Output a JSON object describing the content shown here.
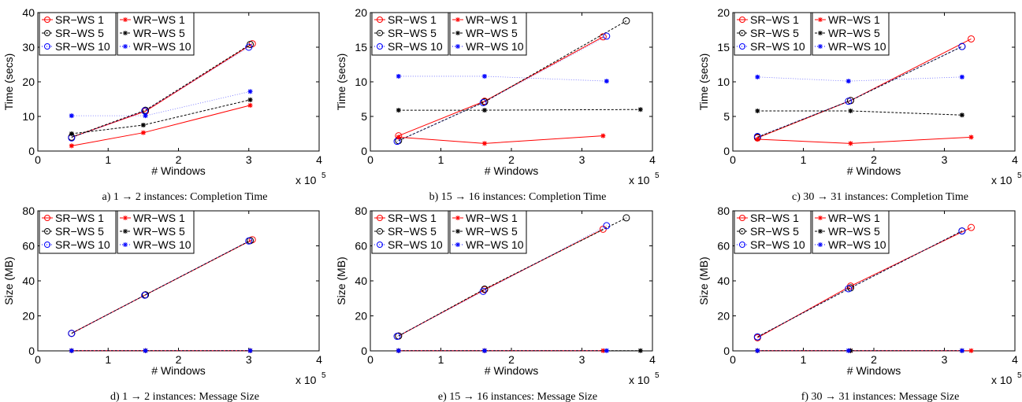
{
  "chart_data": [
    {
      "type": "line",
      "caption": "a) 1 → 2 instances: Completion Time",
      "xlabel": "# Windows",
      "ylabel": "Time (secs)",
      "xlim": [
        0,
        4
      ],
      "ylim": [
        0,
        40
      ],
      "xticks": [
        "0",
        "1",
        "2",
        "3",
        "4"
      ],
      "yticks": [
        "0",
        "10",
        "20",
        "30",
        "40"
      ],
      "x_multiplier": "x 10",
      "x_multiplier_exp": "5",
      "legend_sr": [
        "SR−WS 1",
        "SR−WS 5",
        "SR−WS 10"
      ],
      "legend_wr": [
        "WR−WS 1",
        "WR−WS 5",
        "WR−WS 10"
      ],
      "series": [
        {
          "name": "SR−WS 1",
          "x": [
            0.48,
            1.53,
            3.05
          ],
          "y": [
            4.0,
            11.5,
            31.0
          ]
        },
        {
          "name": "SR−WS 5",
          "x": [
            0.48,
            1.53,
            3.02
          ],
          "y": [
            4.0,
            11.8,
            30.8
          ]
        },
        {
          "name": "SR−WS 10",
          "x": [
            0.48,
            1.52,
            3.0
          ],
          "y": [
            3.8,
            11.6,
            30.0
          ]
        },
        {
          "name": "WR−WS 1",
          "x": [
            0.48,
            1.5,
            3.02
          ],
          "y": [
            1.5,
            5.3,
            13.2
          ]
        },
        {
          "name": "WR−WS 5",
          "x": [
            0.48,
            1.5,
            3.02
          ],
          "y": [
            5.0,
            7.5,
            14.8
          ]
        },
        {
          "name": "WR−WS 10",
          "x": [
            0.48,
            1.53,
            3.02
          ],
          "y": [
            10.2,
            10.2,
            17.2
          ]
        }
      ]
    },
    {
      "type": "line",
      "caption": "b) 15 → 16 instances: Completion Time",
      "xlabel": "# Windows",
      "ylabel": "Time (secs)",
      "xlim": [
        0,
        4
      ],
      "ylim": [
        0,
        20
      ],
      "xticks": [
        "0",
        "1",
        "2",
        "3",
        "4"
      ],
      "yticks": [
        "0",
        "5",
        "10",
        "15",
        "20"
      ],
      "x_multiplier": "x 10",
      "x_multiplier_exp": "5",
      "legend_sr": [
        "SR−WS 1",
        "SR−WS 5",
        "SR−WS 10"
      ],
      "legend_wr": [
        "WR−WS 1",
        "WR−WS 5",
        "WR−WS 10"
      ],
      "series": [
        {
          "name": "SR−WS 1",
          "x": [
            0.4,
            1.62,
            3.3
          ],
          "y": [
            2.2,
            7.2,
            16.5
          ]
        },
        {
          "name": "SR−WS 5",
          "x": [
            0.4,
            1.62,
            3.63
          ],
          "y": [
            1.5,
            7.1,
            18.8
          ]
        },
        {
          "name": "SR−WS 10",
          "x": [
            0.38,
            1.6,
            3.35
          ],
          "y": [
            1.4,
            7.0,
            16.6
          ]
        },
        {
          "name": "WR−WS 1",
          "x": [
            0.4,
            1.62,
            3.3
          ],
          "y": [
            2.0,
            1.1,
            2.2
          ]
        },
        {
          "name": "WR−WS 5",
          "x": [
            0.4,
            1.62,
            3.83
          ],
          "y": [
            5.9,
            5.9,
            6.0
          ]
        },
        {
          "name": "WR−WS 10",
          "x": [
            0.4,
            1.62,
            3.35
          ],
          "y": [
            10.8,
            10.8,
            10.1
          ]
        }
      ]
    },
    {
      "type": "line",
      "caption": "c) 30 → 31 instances: Completion Time",
      "xlabel": "# Windows",
      "ylabel": "Time (secs)",
      "xlim": [
        0,
        4
      ],
      "ylim": [
        0,
        20
      ],
      "xticks": [
        "0",
        "1",
        "2",
        "3",
        "4"
      ],
      "yticks": [
        "0",
        "5",
        "10",
        "15",
        "20"
      ],
      "x_multiplier": "x 10",
      "x_multiplier_exp": "5",
      "legend_sr": [
        "SR−WS 1",
        "SR−WS 5",
        "SR−WS 10"
      ],
      "legend_wr": [
        "WR−WS 1",
        "WR−WS 5",
        "WR−WS 10"
      ],
      "series": [
        {
          "name": "SR−WS 1",
          "x": [
            0.35,
            1.67,
            3.38
          ],
          "y": [
            1.9,
            7.3,
            16.2
          ]
        },
        {
          "name": "SR−WS 5",
          "x": [
            0.35,
            1.67,
            3.25
          ],
          "y": [
            2.0,
            7.3,
            15.1
          ]
        },
        {
          "name": "SR−WS 10",
          "x": [
            0.35,
            1.64,
            3.25
          ],
          "y": [
            2.1,
            7.2,
            15.1
          ]
        },
        {
          "name": "WR−WS 1",
          "x": [
            0.35,
            1.67,
            3.38
          ],
          "y": [
            1.7,
            1.1,
            2.0
          ]
        },
        {
          "name": "WR−WS 5",
          "x": [
            0.35,
            1.67,
            3.25
          ],
          "y": [
            5.8,
            5.8,
            5.2
          ]
        },
        {
          "name": "WR−WS 10",
          "x": [
            0.35,
            1.64,
            3.25
          ],
          "y": [
            10.7,
            10.1,
            10.7
          ]
        }
      ]
    },
    {
      "type": "line",
      "caption": "d) 1 → 2 instances: Message Size",
      "xlabel": "# Windows",
      "ylabel": "Size (MB)",
      "xlim": [
        0,
        4
      ],
      "ylim": [
        0,
        80
      ],
      "xticks": [
        "0",
        "1",
        "2",
        "3",
        "4"
      ],
      "yticks": [
        "0",
        "20",
        "40",
        "60",
        "80"
      ],
      "x_multiplier": "x 10",
      "x_multiplier_exp": "5",
      "legend_sr": [
        "SR−WS 1",
        "SR−WS 5",
        "SR−WS 10"
      ],
      "legend_wr": [
        "WR−WS 1",
        "WR−WS 5",
        "WR−WS 10"
      ],
      "series": [
        {
          "name": "SR−WS 1",
          "x": [
            0.48,
            1.53,
            3.05
          ],
          "y": [
            10.0,
            32.0,
            63.5
          ]
        },
        {
          "name": "SR−WS 5",
          "x": [
            0.48,
            1.53,
            3.02
          ],
          "y": [
            10.0,
            32.0,
            63.0
          ]
        },
        {
          "name": "SR−WS 10",
          "x": [
            0.48,
            1.52,
            3.0
          ],
          "y": [
            10.0,
            31.8,
            62.8
          ]
        },
        {
          "name": "WR−WS 1",
          "x": [
            0.48,
            1.53,
            3.02
          ],
          "y": [
            0.1,
            0.1,
            0.1
          ]
        },
        {
          "name": "WR−WS 5",
          "x": [
            0.48,
            1.53,
            3.02
          ],
          "y": [
            0.1,
            0.1,
            0.1
          ]
        },
        {
          "name": "WR−WS 10",
          "x": [
            0.48,
            1.53,
            3.02
          ],
          "y": [
            0.1,
            0.1,
            0.1
          ]
        }
      ]
    },
    {
      "type": "line",
      "caption": "e) 15 → 16 instances: Message Size",
      "xlabel": "# Windows",
      "ylabel": "Size (MB)",
      "xlim": [
        0,
        4
      ],
      "ylim": [
        0,
        80
      ],
      "xticks": [
        "0",
        "1",
        "2",
        "3",
        "4"
      ],
      "yticks": [
        "0",
        "20",
        "40",
        "60",
        "80"
      ],
      "x_multiplier": "x 10",
      "x_multiplier_exp": "5",
      "legend_sr": [
        "SR−WS 1",
        "SR−WS 5",
        "SR−WS 10"
      ],
      "legend_wr": [
        "WR−WS 1",
        "WR−WS 5",
        "WR−WS 10"
      ],
      "series": [
        {
          "name": "SR−WS 1",
          "x": [
            0.4,
            1.62,
            3.3
          ],
          "y": [
            8.5,
            35.0,
            69.5
          ]
        },
        {
          "name": "SR−WS 5",
          "x": [
            0.4,
            1.62,
            3.63
          ],
          "y": [
            8.5,
            35.3,
            76.0
          ]
        },
        {
          "name": "SR−WS 10",
          "x": [
            0.38,
            1.6,
            3.35
          ],
          "y": [
            8.3,
            34.0,
            71.5
          ]
        },
        {
          "name": "WR−WS 1",
          "x": [
            0.4,
            1.62,
            3.3
          ],
          "y": [
            0.1,
            0.1,
            0.1
          ]
        },
        {
          "name": "WR−WS 5",
          "x": [
            0.4,
            1.62,
            3.83
          ],
          "y": [
            0.1,
            0.1,
            0.1
          ]
        },
        {
          "name": "WR−WS 10",
          "x": [
            0.4,
            1.62,
            3.35
          ],
          "y": [
            0.1,
            0.1,
            0.1
          ]
        }
      ]
    },
    {
      "type": "line",
      "caption": "f) 30 → 31 instances: Message Size",
      "xlabel": "# Windows",
      "ylabel": "Size (MB)",
      "xlim": [
        0,
        4
      ],
      "ylim": [
        0,
        80
      ],
      "xticks": [
        "0",
        "1",
        "2",
        "3",
        "4"
      ],
      "yticks": [
        "0",
        "20",
        "40",
        "60",
        "80"
      ],
      "x_multiplier": "x 10",
      "x_multiplier_exp": "5",
      "legend_sr": [
        "SR−WS 1",
        "SR−WS 5",
        "SR−WS 10"
      ],
      "legend_wr": [
        "WR−WS 1",
        "WR−WS 5",
        "WR−WS 10"
      ],
      "series": [
        {
          "name": "SR−WS 1",
          "x": [
            0.35,
            1.67,
            3.38
          ],
          "y": [
            7.5,
            37.0,
            70.5
          ]
        },
        {
          "name": "SR−WS 5",
          "x": [
            0.35,
            1.67,
            3.25
          ],
          "y": [
            8.0,
            36.0,
            68.5
          ]
        },
        {
          "name": "SR−WS 10",
          "x": [
            0.35,
            1.64,
            3.25
          ],
          "y": [
            8.0,
            35.5,
            68.5
          ]
        },
        {
          "name": "WR−WS 1",
          "x": [
            0.35,
            1.67,
            3.38
          ],
          "y": [
            0.1,
            0.1,
            0.1
          ]
        },
        {
          "name": "WR−WS 5",
          "x": [
            0.35,
            1.67,
            3.25
          ],
          "y": [
            0.1,
            0.1,
            0.1
          ]
        },
        {
          "name": "WR−WS 10",
          "x": [
            0.35,
            1.64,
            3.25
          ],
          "y": [
            0.1,
            0.1,
            0.1
          ]
        }
      ]
    }
  ],
  "series_styles": [
    {
      "color": "#ff0000",
      "marker": "circle",
      "dash": "solid"
    },
    {
      "color": "#000000",
      "marker": "circle",
      "dash": "dashed"
    },
    {
      "color": "#0000ff",
      "marker": "circle",
      "dash": "dotted-light"
    },
    {
      "color": "#ff0000",
      "marker": "star",
      "dash": "solid"
    },
    {
      "color": "#000000",
      "marker": "star",
      "dash": "dashed"
    },
    {
      "color": "#0000ff",
      "marker": "star",
      "dash": "dotted-light"
    }
  ]
}
